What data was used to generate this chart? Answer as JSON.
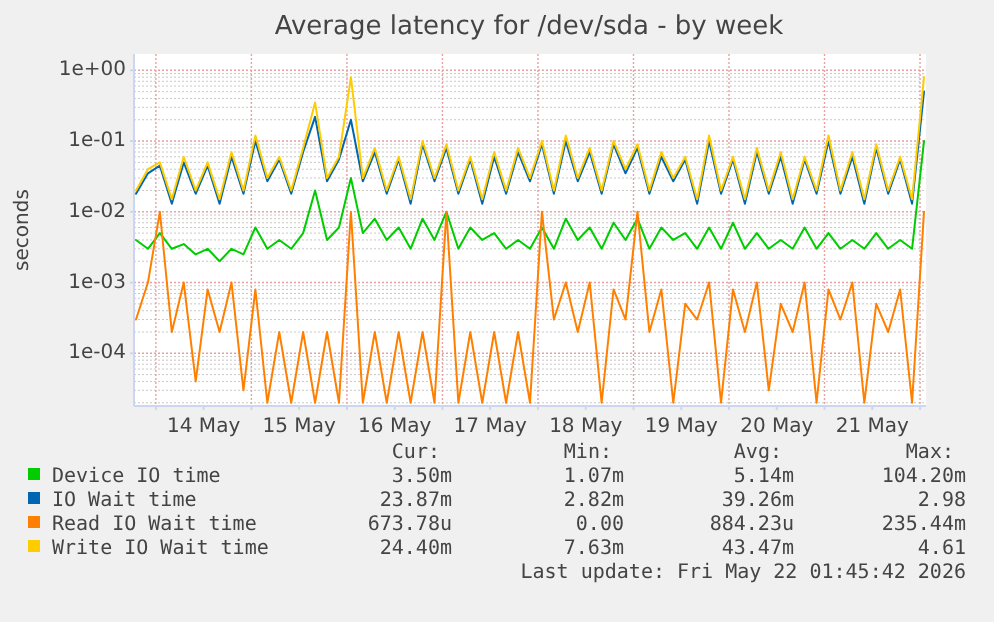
{
  "chart_data": {
    "type": "line",
    "title": "Average latency for /dev/sda - by week",
    "ylabel": "seconds",
    "log": "y",
    "grid": true,
    "legend": "bottom",
    "xlim": [
      "2026-05-13T18:30",
      "2026-05-22T01:30"
    ],
    "xticks": [
      {
        "value": "2026-05-14T00:00",
        "label": null
      },
      {
        "value": "2026-05-14T12:00",
        "label": "14 May"
      },
      {
        "value": "2026-05-15T00:00",
        "label": null
      },
      {
        "value": "2026-05-15T12:00",
        "label": "15 May"
      },
      {
        "value": "2026-05-16T00:00",
        "label": null
      },
      {
        "value": "2026-05-16T12:00",
        "label": "16 May"
      },
      {
        "value": "2026-05-17T00:00",
        "label": null
      },
      {
        "value": "2026-05-17T12:00",
        "label": "17 May"
      },
      {
        "value": "2026-05-18T00:00",
        "label": null
      },
      {
        "value": "2026-05-18T12:00",
        "label": "18 May"
      },
      {
        "value": "2026-05-19T00:00",
        "label": null
      },
      {
        "value": "2026-05-19T12:00",
        "label": "19 May"
      },
      {
        "value": "2026-05-20T00:00",
        "label": null
      },
      {
        "value": "2026-05-20T12:00",
        "label": "20 May"
      },
      {
        "value": "2026-05-21T00:00",
        "label": null
      },
      {
        "value": "2026-05-21T12:00",
        "label": "21 May"
      },
      {
        "value": "2026-05-22T00:00",
        "label": null
      }
    ],
    "ylim": [
      1.8e-05,
      1.7
    ],
    "yticks": [
      {
        "value": 0.0001,
        "label": "1e-04"
      },
      {
        "value": 0.001,
        "label": "1e-03"
      },
      {
        "value": 0.01,
        "label": "1e-02"
      },
      {
        "value": 0.1,
        "label": "1e-01"
      },
      {
        "value": 1,
        "label": "1e+00"
      }
    ],
    "x": [
      "2026-05-13T19:00",
      "2026-05-13T22:00",
      "2026-05-14T01:00",
      "2026-05-14T04:00",
      "2026-05-14T07:00",
      "2026-05-14T10:00",
      "2026-05-14T13:00",
      "2026-05-14T16:00",
      "2026-05-14T19:00",
      "2026-05-14T22:00",
      "2026-05-15T01:00",
      "2026-05-15T04:00",
      "2026-05-15T07:00",
      "2026-05-15T10:00",
      "2026-05-15T13:00",
      "2026-05-15T16:00",
      "2026-05-15T19:00",
      "2026-05-15T22:00",
      "2026-05-16T01:00",
      "2026-05-16T04:00",
      "2026-05-16T07:00",
      "2026-05-16T10:00",
      "2026-05-16T13:00",
      "2026-05-16T16:00",
      "2026-05-16T19:00",
      "2026-05-16T22:00",
      "2026-05-17T01:00",
      "2026-05-17T04:00",
      "2026-05-17T07:00",
      "2026-05-17T10:00",
      "2026-05-17T13:00",
      "2026-05-17T16:00",
      "2026-05-17T19:00",
      "2026-05-17T22:00",
      "2026-05-18T01:00",
      "2026-05-18T04:00",
      "2026-05-18T07:00",
      "2026-05-18T10:00",
      "2026-05-18T13:00",
      "2026-05-18T16:00",
      "2026-05-18T19:00",
      "2026-05-18T22:00",
      "2026-05-19T01:00",
      "2026-05-19T04:00",
      "2026-05-19T07:00",
      "2026-05-19T10:00",
      "2026-05-19T13:00",
      "2026-05-19T16:00",
      "2026-05-19T19:00",
      "2026-05-19T22:00",
      "2026-05-20T01:00",
      "2026-05-20T04:00",
      "2026-05-20T07:00",
      "2026-05-20T10:00",
      "2026-05-20T13:00",
      "2026-05-20T16:00",
      "2026-05-20T19:00",
      "2026-05-20T22:00",
      "2026-05-21T01:00",
      "2026-05-21T04:00",
      "2026-05-21T07:00",
      "2026-05-21T10:00",
      "2026-05-21T13:00",
      "2026-05-21T16:00",
      "2026-05-21T19:00",
      "2026-05-21T22:00",
      "2026-05-22T01:00"
    ],
    "series": [
      {
        "name": "Device IO time",
        "color": "#00cc00",
        "values": [
          0.004,
          0.003,
          0.005,
          0.003,
          0.0035,
          0.0025,
          0.003,
          0.002,
          0.003,
          0.0025,
          0.006,
          0.003,
          0.004,
          0.003,
          0.005,
          0.02,
          0.004,
          0.006,
          0.03,
          0.005,
          0.008,
          0.004,
          0.006,
          0.003,
          0.008,
          0.004,
          0.01,
          0.003,
          0.006,
          0.004,
          0.005,
          0.003,
          0.004,
          0.003,
          0.006,
          0.003,
          0.008,
          0.004,
          0.006,
          0.003,
          0.007,
          0.004,
          0.008,
          0.003,
          0.006,
          0.004,
          0.005,
          0.003,
          0.006,
          0.003,
          0.007,
          0.003,
          0.005,
          0.003,
          0.004,
          0.003,
          0.006,
          0.003,
          0.005,
          0.003,
          0.004,
          0.003,
          0.005,
          0.003,
          0.004,
          0.003,
          0.1
        ]
      },
      {
        "name": "IO Wait time",
        "color": "#0066b3",
        "values": [
          0.018,
          0.035,
          0.045,
          0.013,
          0.05,
          0.018,
          0.045,
          0.013,
          0.06,
          0.018,
          0.1,
          0.027,
          0.055,
          0.018,
          0.07,
          0.22,
          0.027,
          0.055,
          0.2,
          0.027,
          0.07,
          0.018,
          0.055,
          0.013,
          0.09,
          0.027,
          0.08,
          0.018,
          0.055,
          0.013,
          0.06,
          0.018,
          0.07,
          0.027,
          0.09,
          0.018,
          0.1,
          0.027,
          0.07,
          0.018,
          0.09,
          0.035,
          0.08,
          0.018,
          0.06,
          0.027,
          0.055,
          0.013,
          0.1,
          0.018,
          0.055,
          0.013,
          0.07,
          0.018,
          0.06,
          0.013,
          0.055,
          0.018,
          0.1,
          0.018,
          0.06,
          0.013,
          0.08,
          0.018,
          0.055,
          0.013,
          0.5
        ]
      },
      {
        "name": "Read IO Wait time",
        "color": "#ff8000",
        "values": [
          0.0003,
          0.001,
          0.01,
          0.0002,
          0.001,
          4e-05,
          0.0008,
          0.0002,
          0.001,
          3e-05,
          0.0008,
          2e-05,
          0.0002,
          2e-05,
          0.0002,
          2e-05,
          0.0002,
          2e-05,
          0.01,
          2e-05,
          0.0002,
          2e-05,
          0.0002,
          2e-05,
          0.0002,
          2e-05,
          0.01,
          2e-05,
          0.0002,
          2e-05,
          0.0002,
          2e-05,
          0.0002,
          2e-05,
          0.01,
          0.0003,
          0.001,
          0.0002,
          0.001,
          2e-05,
          0.0008,
          0.0003,
          0.01,
          0.0002,
          0.0008,
          2e-05,
          0.0005,
          0.0003,
          0.001,
          2e-05,
          0.0008,
          0.0002,
          0.001,
          3e-05,
          0.0005,
          0.0002,
          0.001,
          2e-05,
          0.0008,
          0.0003,
          0.001,
          2e-05,
          0.0005,
          0.0002,
          0.0008,
          2e-05,
          0.01
        ]
      },
      {
        "name": "Write IO Wait time",
        "color": "#ffcc00",
        "values": [
          0.02,
          0.04,
          0.05,
          0.015,
          0.06,
          0.02,
          0.05,
          0.015,
          0.07,
          0.02,
          0.12,
          0.03,
          0.06,
          0.02,
          0.08,
          0.35,
          0.03,
          0.06,
          0.8,
          0.03,
          0.08,
          0.02,
          0.06,
          0.015,
          0.1,
          0.03,
          0.09,
          0.02,
          0.06,
          0.015,
          0.07,
          0.02,
          0.08,
          0.03,
          0.1,
          0.02,
          0.12,
          0.03,
          0.08,
          0.02,
          0.1,
          0.04,
          0.09,
          0.02,
          0.07,
          0.03,
          0.06,
          0.015,
          0.12,
          0.02,
          0.06,
          0.015,
          0.08,
          0.02,
          0.07,
          0.015,
          0.06,
          0.02,
          0.12,
          0.02,
          0.07,
          0.015,
          0.09,
          0.02,
          0.06,
          0.015,
          0.8
        ]
      }
    ],
    "annotations": [
      "Cur:",
      "Min:",
      "Avg:",
      "Max:",
      "3.50m",
      "1.07m",
      "5.14m",
      "104.20m",
      "23.87m",
      "2.82m",
      "39.26m",
      "2.98",
      "673.78u",
      "0.00",
      "884.23u",
      "235.44m",
      "24.40m",
      "7.63m",
      "43.47m",
      "4.61",
      "Last update: Fri May 22 01:45:42 2026"
    ]
  }
}
